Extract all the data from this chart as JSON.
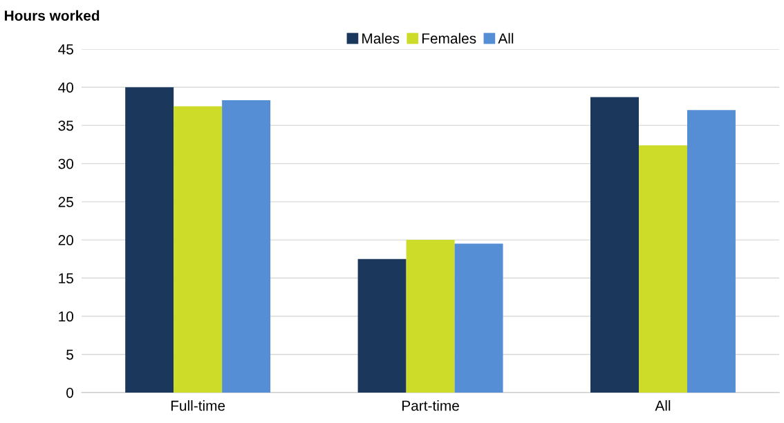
{
  "chart_data": {
    "type": "bar",
    "ylabel": "Hours worked",
    "categories": [
      "Full-time",
      "Part-time",
      "All"
    ],
    "series": [
      {
        "name": "Males",
        "color": "#1b375c",
        "values": [
          40.0,
          17.5,
          38.7
        ]
      },
      {
        "name": "Females",
        "color": "#cddc29",
        "values": [
          37.5,
          20.0,
          32.4
        ]
      },
      {
        "name": "All",
        "color": "#558ed5",
        "values": [
          38.3,
          19.5,
          37.0
        ]
      }
    ],
    "ylim": [
      0,
      45
    ],
    "yticks": [
      0,
      5,
      10,
      15,
      20,
      25,
      30,
      35,
      40,
      45
    ],
    "grid": "y",
    "legend": "top"
  }
}
